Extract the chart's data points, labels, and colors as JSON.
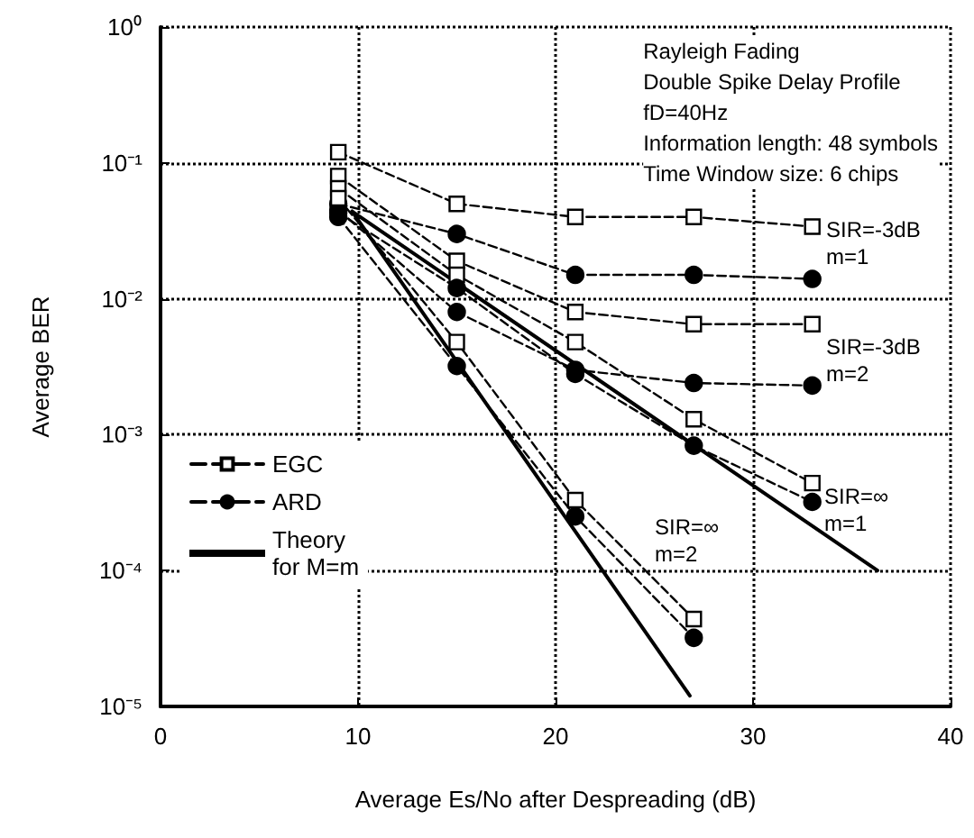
{
  "chart_data": {
    "type": "line",
    "xlabel": "Average Es/No after Despreading (dB)",
    "ylabel": "Average BER",
    "xlim": [
      0,
      40
    ],
    "xticks": [
      0,
      10,
      20,
      30,
      40
    ],
    "ylim": [
      1e-05,
      1
    ],
    "yticks": [
      {
        "value": 1,
        "label": "10⁰"
      },
      {
        "value": 0.1,
        "label": "10⁻¹"
      },
      {
        "value": 0.01,
        "label": "10⁻²"
      },
      {
        "value": 0.001,
        "label": "10⁻³"
      },
      {
        "value": 0.0001,
        "label": "10⁻⁴"
      },
      {
        "value": 1e-05,
        "label": "10⁻⁵"
      }
    ],
    "log": "y",
    "grid": true,
    "legend": "left",
    "x": [
      9,
      15,
      21,
      27,
      33
    ],
    "series": [
      {
        "name": "EGC",
        "color": "#000000",
        "marker": "square",
        "line_style": "dashed",
        "values": [
          0.12,
          0.05,
          0.04,
          0.04,
          0.034
        ]
      },
      {
        "name": "ARD",
        "color": "#000000",
        "marker": "circle",
        "line_style": "dashed",
        "values": [
          0.05,
          0.03,
          0.015,
          0.015,
          0.014
        ]
      },
      {
        "color": "#000000",
        "marker": "square",
        "line_style": "dashed",
        "values": [
          0.08,
          0.019,
          0.008,
          0.0065,
          0.0065
        ]
      },
      {
        "color": "#000000",
        "marker": "circle",
        "line_style": "dashed",
        "values": [
          0.045,
          0.008,
          0.003,
          0.0024,
          0.0023
        ]
      },
      {
        "color": "#000000",
        "marker": "square",
        "line_style": "dashed",
        "values": [
          0.065,
          0.015,
          0.0048,
          0.0013,
          0.00044
        ]
      },
      {
        "color": "#000000",
        "marker": "circle",
        "line_style": "dashed",
        "values": [
          0.043,
          0.012,
          0.0028,
          0.00083,
          0.00032
        ]
      },
      {
        "color": "#000000",
        "marker": "square",
        "line_style": "dashed",
        "values": [
          0.055,
          0.0048,
          0.00033,
          4.4e-05,
          null
        ]
      },
      {
        "color": "#000000",
        "marker": "circle",
        "line_style": "dashed",
        "values": [
          0.04,
          0.0032,
          0.00025,
          3.2e-05,
          null
        ]
      },
      {
        "name": "Theory\nfor M=m",
        "color": "#000000",
        "marker": "none",
        "line_style": "solid",
        "x": [
          9.7,
          36.3
        ],
        "values": [
          0.044,
          0.0001
        ]
      },
      {
        "color": "#000000",
        "marker": "none",
        "line_style": "solid",
        "x": [
          9.7,
          26.8
        ],
        "values": [
          0.044,
          1.2e-05
        ]
      }
    ],
    "annotations": [
      "Rayleigh Fading",
      "Double Spike Delay Profile",
      "fD=40Hz",
      "Information length: 48 symbols",
      "Time Window size: 6 chips",
      "SIR=-3dB\nm=1",
      "SIR=-3dB\nm=2",
      "SIR=∞\nm=1",
      "SIR=∞\nm=2"
    ]
  }
}
